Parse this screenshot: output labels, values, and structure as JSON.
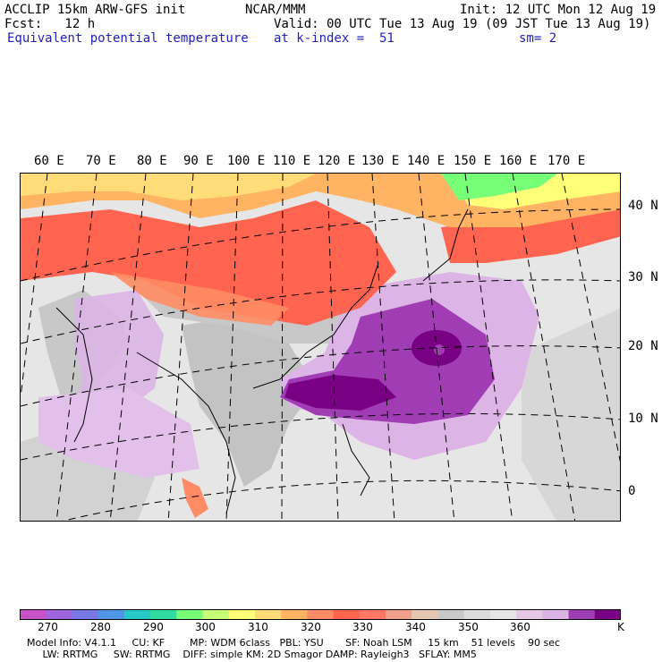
{
  "header": {
    "line1_left": "ACCLIP 15km ARW-GFS init",
    "line1_mid": "NCAR/MMM",
    "line1_right": "Init: 12 UTC Mon 12 Aug 19",
    "line2_left": "Fcst:   12 h",
    "line2_right": "Valid: 00 UTC Tue 13 Aug 19 (09 JST Tue 13 Aug 19)",
    "line3_left": "Equivalent potential temperature",
    "line3_mid": "at k-index =  51",
    "line3_right": "sm= 2"
  },
  "map": {
    "lon_labels": [
      "60 E",
      "70 E",
      "80 E",
      "90 E",
      "100 E",
      "110 E",
      "120 E",
      "130 E",
      "140 E",
      "150 E",
      "160 E",
      "170 E"
    ],
    "lat_labels": [
      "40 N",
      "30 N",
      "20 N",
      "10 N",
      "0"
    ],
    "colors": {
      "land_gray": "#c8c8c8",
      "ocean_gray": "#e6e6e6",
      "light_purple": "#dcb4e6",
      "mid_purple": "#a03cb4",
      "dark_purple": "#780082",
      "red": "#ff6450",
      "salmon": "#ff8c64",
      "orange": "#ffb464",
      "yellow": "#ffff78",
      "green": "#78ff78"
    }
  },
  "colorbar": {
    "unit": "K",
    "tick_labels": [
      "270",
      "280",
      "290",
      "300",
      "310",
      "320",
      "330",
      "340",
      "350",
      "360"
    ],
    "colors": [
      "#c850c8",
      "#a064dc",
      "#7878e6",
      "#5096e6",
      "#28c8c8",
      "#32dca0",
      "#78ff78",
      "#c8ff78",
      "#ffff78",
      "#ffdc78",
      "#ffb464",
      "#ff8c64",
      "#ff6450",
      "#ff7864",
      "#f0a08c",
      "#e6c8b4",
      "#c8c8c8",
      "#dcdcdc",
      "#e6e6e6",
      "#e6c8e6",
      "#dcb4e6",
      "#a03cb4",
      "#780082"
    ]
  },
  "footer": {
    "line1": "Model Info: V4.1.1     CU: KF        MP: WDM 6class   PBL: YSU       SF: Noah LSM     15 km    51 levels    90 sec",
    "line2": "     LW: RRTMG     SW: RRTMG    DIFF: simple KM: 2D Smagor DAMP: Rayleigh3   SFLAY: MM5"
  }
}
